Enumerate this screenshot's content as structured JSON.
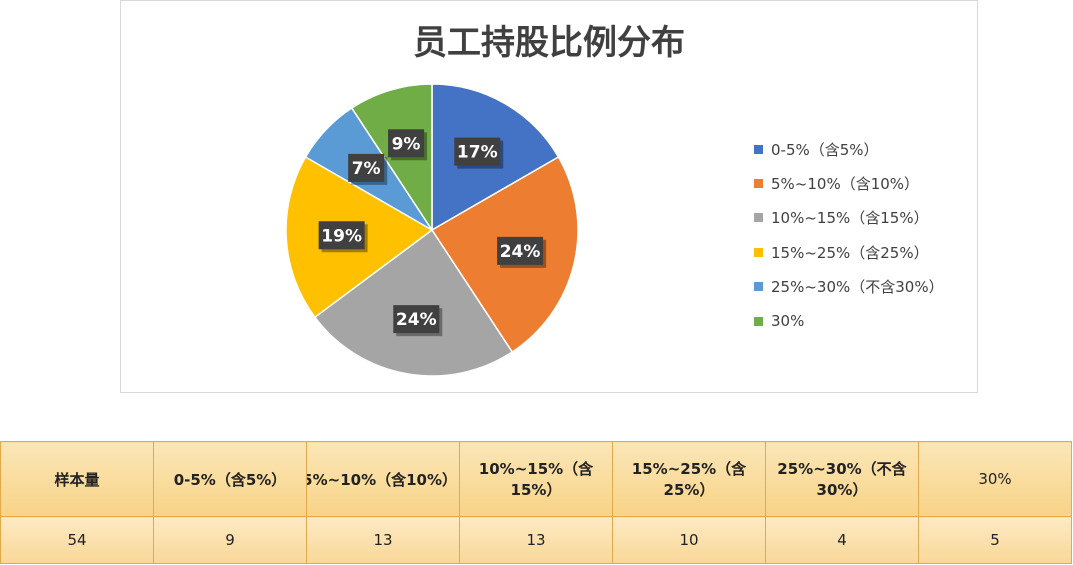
{
  "chart_data": {
    "type": "pie",
    "title": "员工持股比例分布",
    "categories": [
      "0-5%（含5%）",
      "5%~10%（含10%）",
      "10%~15%（含15%）",
      "15%~25%（含25%）",
      "25%~30%（不含30%）",
      "30%"
    ],
    "values": [
      9,
      13,
      13,
      10,
      4,
      5
    ],
    "data_labels": [
      "17%",
      "24%",
      "24%",
      "19%",
      "7%",
      "9%"
    ],
    "colors": [
      "#4472c4",
      "#ed7d31",
      "#a5a5a5",
      "#ffc000",
      "#5b9bd5",
      "#70ad47"
    ],
    "legend_position": "right"
  },
  "table": {
    "headers": [
      "样本量",
      "0-5%（含5%）",
      "5%~10%（含10%）",
      "10%~15%（含15%）",
      "15%~25%（含25%）",
      "25%~30%（不含30%）",
      "30%"
    ],
    "values": [
      "54",
      "9",
      "13",
      "13",
      "10",
      "4",
      "5"
    ]
  }
}
